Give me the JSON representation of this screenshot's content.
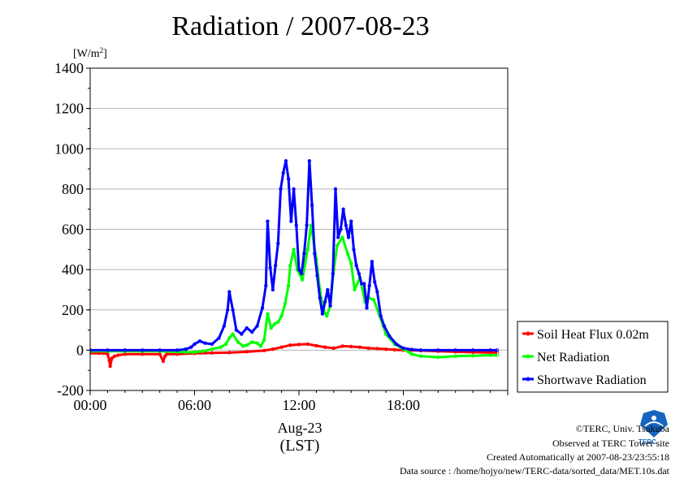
{
  "chart_data": {
    "type": "line",
    "title": "Radiation / 2007-08-23",
    "ylabel_unit": "[W/m",
    "ylabel_sup": "2",
    "ylabel_close": "]",
    "ylim": [
      -200,
      1400
    ],
    "yticks": [
      -200,
      0,
      200,
      400,
      600,
      800,
      1000,
      1200,
      1400
    ],
    "xlim": [
      0,
      24
    ],
    "xticks": [
      {
        "hour": 0,
        "label": "00:00"
      },
      {
        "hour": 6,
        "label": "06:00"
      },
      {
        "hour": 12,
        "label": "12:00"
      },
      {
        "hour": 18,
        "label": "18:00"
      }
    ],
    "xdate": "Aug-23",
    "xunit": "(LST)",
    "grid": true,
    "legend_position": "bottom-right",
    "series": [
      {
        "name": "Soil Heat Flux 0.02m",
        "color": "#ff0000",
        "x": [
          0,
          0.5,
          1.0,
          1.1,
          1.15,
          1.25,
          1.4,
          1.6,
          2.0,
          3.0,
          4.0,
          4.2,
          4.3,
          4.4,
          5.0,
          6.0,
          7.0,
          8.0,
          9.0,
          10.0,
          10.5,
          11.0,
          11.5,
          12.0,
          12.5,
          13.0,
          13.5,
          14.0,
          14.5,
          15.0,
          15.5,
          16.0,
          16.5,
          17.0,
          17.5,
          18.0,
          19.0,
          20.0,
          21.0,
          22.0,
          23.0,
          23.4
        ],
        "y": [
          -15,
          -15,
          -18,
          -50,
          -80,
          -40,
          -30,
          -25,
          -20,
          -20,
          -20,
          -55,
          -30,
          -20,
          -20,
          -16,
          -14,
          -12,
          -8,
          -2,
          5,
          15,
          25,
          28,
          30,
          22,
          15,
          10,
          20,
          18,
          15,
          10,
          8,
          5,
          2,
          0,
          -2,
          -5,
          -8,
          -10,
          -12,
          -12
        ]
      },
      {
        "name": "Net Radiation",
        "color": "#00ff00",
        "x": [
          0,
          1,
          2,
          3,
          4,
          5,
          5.5,
          6,
          6.5,
          7,
          7.5,
          7.8,
          8.0,
          8.2,
          8.5,
          8.8,
          9.0,
          9.3,
          9.6,
          9.8,
          10.0,
          10.2,
          10.4,
          10.6,
          10.8,
          11.0,
          11.2,
          11.4,
          11.5,
          11.7,
          11.9,
          12.2,
          12.5,
          12.7,
          13.0,
          13.2,
          13.4,
          13.6,
          13.8,
          14.0,
          14.2,
          14.5,
          14.8,
          15.0,
          15.2,
          15.5,
          15.8,
          16.0,
          16.3,
          16.6,
          17.0,
          17.5,
          18.0,
          18.5,
          19,
          20,
          21,
          22,
          23,
          23.4
        ],
        "y": [
          -5,
          -5,
          -5,
          -5,
          -5,
          -8,
          -10,
          -10,
          -5,
          5,
          15,
          30,
          60,
          80,
          40,
          20,
          25,
          40,
          35,
          20,
          50,
          180,
          110,
          130,
          140,
          170,
          230,
          320,
          420,
          500,
          400,
          350,
          500,
          620,
          450,
          300,
          200,
          170,
          220,
          400,
          520,
          560,
          480,
          430,
          300,
          360,
          240,
          260,
          250,
          180,
          80,
          30,
          5,
          -20,
          -30,
          -35,
          -30,
          -28,
          -25,
          -25
        ]
      },
      {
        "name": "Shortwave Radiation",
        "color": "#0000ff",
        "x": [
          0,
          1,
          2,
          3,
          4,
          5,
          5.5,
          5.8,
          6.0,
          6.3,
          6.6,
          7.0,
          7.4,
          7.7,
          7.9,
          8.0,
          8.2,
          8.4,
          8.7,
          9.0,
          9.3,
          9.6,
          9.9,
          10.1,
          10.2,
          10.35,
          10.5,
          10.65,
          10.8,
          10.95,
          11.1,
          11.25,
          11.4,
          11.55,
          11.7,
          11.85,
          12.0,
          12.15,
          12.3,
          12.45,
          12.6,
          12.75,
          12.9,
          13.05,
          13.2,
          13.35,
          13.5,
          13.65,
          13.8,
          13.95,
          14.1,
          14.25,
          14.4,
          14.55,
          14.7,
          14.85,
          15.0,
          15.15,
          15.3,
          15.45,
          15.6,
          15.75,
          15.9,
          16.05,
          16.2,
          16.35,
          16.5,
          16.7,
          16.9,
          17.2,
          17.6,
          18.0,
          18.5,
          19,
          20,
          21,
          22,
          23,
          23.4
        ],
        "y": [
          0,
          0,
          0,
          0,
          0,
          0,
          5,
          15,
          30,
          45,
          35,
          30,
          60,
          120,
          200,
          290,
          200,
          100,
          80,
          110,
          90,
          120,
          210,
          320,
          640,
          410,
          300,
          420,
          530,
          800,
          880,
          940,
          850,
          640,
          800,
          620,
          400,
          380,
          480,
          620,
          940,
          720,
          480,
          370,
          260,
          180,
          240,
          300,
          220,
          380,
          800,
          560,
          600,
          700,
          620,
          560,
          640,
          500,
          420,
          380,
          330,
          330,
          210,
          320,
          440,
          340,
          290,
          170,
          120,
          70,
          30,
          10,
          3,
          0,
          0,
          0,
          0,
          0,
          0
        ]
      }
    ]
  },
  "credits": {
    "copyright": "©TERC, Univ. Tsukuba",
    "site": "Observed at TERC Tower site",
    "created": "Created Automatically at 2007-08-23/23:55:18",
    "source": "Data source : /home/hojyo/new/TERC-data/sorted_data/MET.10s.dat"
  },
  "logo": {
    "text": "TERC",
    "color": "#1565c0"
  }
}
